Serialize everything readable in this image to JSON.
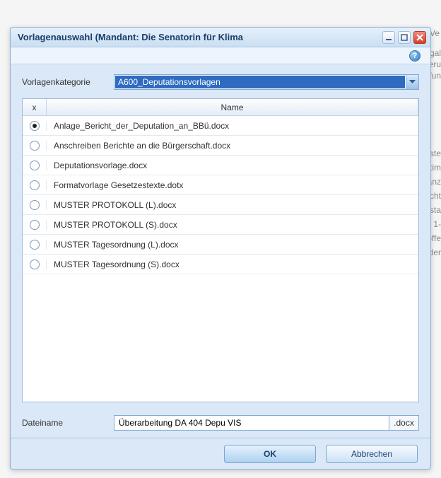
{
  "dialog": {
    "title": "Vorlagenauswahl (Mandant: Die Senatorin für Klima",
    "category_label": "Vorlagenkategorie",
    "category_value": "A600_Deputationsvorlagen",
    "table": {
      "col_select": "x",
      "col_name": "Name",
      "rows": [
        {
          "selected": true,
          "name": "Anlage_Bericht_der_Deputation_an_BBü.docx"
        },
        {
          "selected": false,
          "name": "Anschreiben Berichte an die Bürgerschaft.docx"
        },
        {
          "selected": false,
          "name": "Deputationsvorlage.docx"
        },
        {
          "selected": false,
          "name": "Formatvorlage Gesetzestexte.dotx"
        },
        {
          "selected": false,
          "name": "MUSTER PROTOKOLL (L).docx"
        },
        {
          "selected": false,
          "name": "MUSTER PROTOKOLL (S).docx"
        },
        {
          "selected": false,
          "name": "MUSTER Tagesordnung (L).docx"
        },
        {
          "selected": false,
          "name": "MUSTER Tagesordnung (S).docx"
        }
      ]
    },
    "filename_label": "Dateiname",
    "filename_value": "Überarbeitung DA 404 Depu VIS",
    "filename_ext": ".docx",
    "ok_label": "OK",
    "cancel_label": "Abbrechen"
  },
  "colors": {
    "dialog_bg": "#dbe8f7",
    "border": "#8bb3db",
    "selection_bg": "#2f6bc0"
  }
}
